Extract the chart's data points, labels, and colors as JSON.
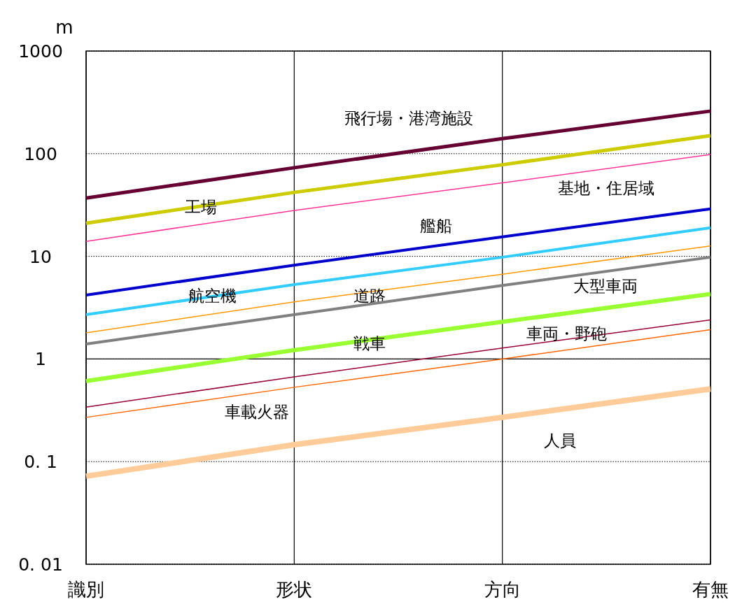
{
  "chart_data": {
    "type": "line",
    "ylabel": "m",
    "log": true,
    "grid": true,
    "legend": false,
    "categories": [
      "識別",
      "形状",
      "方向",
      "有無"
    ],
    "ylim": [
      0.01,
      1000
    ],
    "yticks": [
      1000,
      100,
      10,
      1,
      {
        "value": 0.1,
        "label": "0. 1"
      },
      {
        "value": 0.01,
        "label": "0. 01"
      }
    ],
    "ref_lines": [
      {
        "axis": "y",
        "value": 1,
        "line_style": "solid"
      }
    ],
    "series": [
      {
        "name": "飛行場・港湾施設",
        "color": "#660033",
        "values": [
          37,
          73,
          140,
          260
        ]
      },
      {
        "name": "工場",
        "color": "#cccc00",
        "values": [
          21,
          42,
          78,
          150
        ]
      },
      {
        "name": "基地・住居域",
        "color": "#ff3399",
        "values": [
          14,
          28,
          52,
          98
        ]
      },
      {
        "name": "艦船",
        "color": "#0000cc",
        "values": [
          4.2,
          8.2,
          15.5,
          29
        ]
      },
      {
        "name": "航空機",
        "color": "#33ccff",
        "values": [
          2.7,
          5.3,
          9.8,
          19
        ]
      },
      {
        "name": "道路",
        "color": "#ff9900",
        "values": [
          1.8,
          3.6,
          6.7,
          12.6
        ]
      },
      {
        "name": "大型車両",
        "color": "#808080",
        "values": [
          1.4,
          2.7,
          5.2,
          9.8
        ]
      },
      {
        "name": "戦車",
        "color": "#99ff33",
        "values": [
          0.61,
          1.22,
          2.3,
          4.3
        ]
      },
      {
        "name": "車両・野砲",
        "color": "#990033",
        "values": [
          0.34,
          0.67,
          1.28,
          2.4
        ]
      },
      {
        "name": "車載火器",
        "color": "#ff6600",
        "values": [
          0.27,
          0.53,
          1.0,
          1.93
        ]
      },
      {
        "name": "人員",
        "color": "#ffcc99",
        "values": [
          0.072,
          0.146,
          0.27,
          0.51
        ]
      }
    ]
  }
}
